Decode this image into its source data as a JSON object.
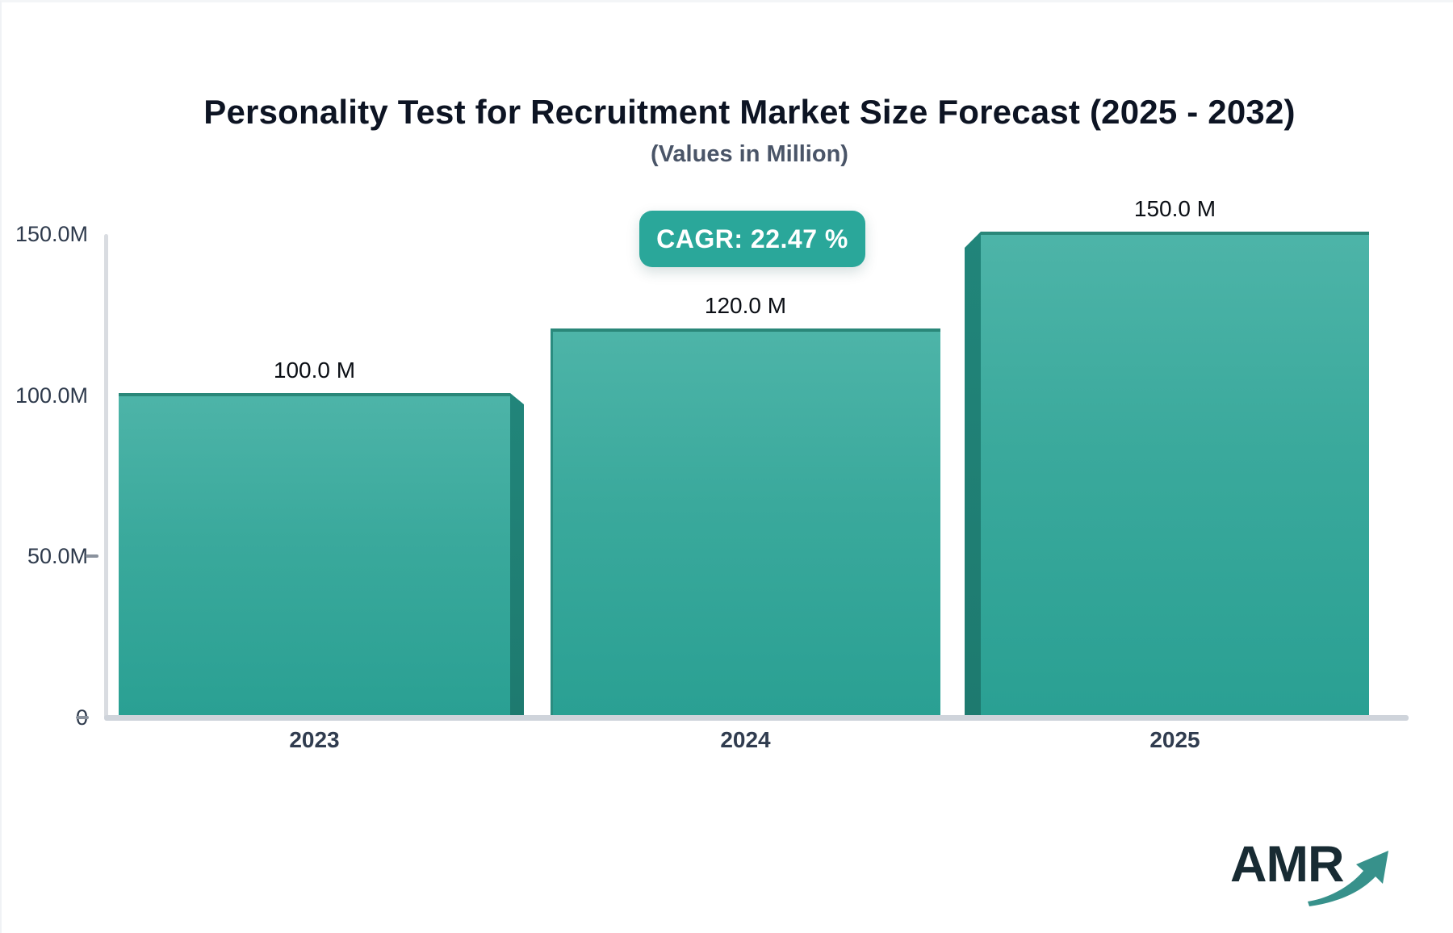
{
  "header": {
    "title": "Personality Test for Recruitment Market Size Forecast (2025 - 2032)",
    "subtitle": "(Values in Million)"
  },
  "badge": {
    "label": "CAGR: 22.47 %"
  },
  "chart_data": {
    "type": "bar",
    "title": "Personality Test for Recruitment Market Size Forecast (2025 - 2032)",
    "subtitle": "(Values in Million)",
    "unit": "Million",
    "categories": [
      "2023",
      "2024",
      "2025"
    ],
    "values": [
      100.0,
      120.0,
      150.0
    ],
    "value_labels": [
      "100.0 M",
      "120.0 M",
      "150.0 M"
    ],
    "cagr_percent": "22.47 %",
    "y_axis": {
      "range": [
        0,
        150
      ],
      "ticks": [
        {
          "label": "150.0M",
          "value": 150,
          "has_dash": false
        },
        {
          "label": "100.0M",
          "value": 100,
          "has_dash": false
        },
        {
          "label": "50.0M",
          "value": 50,
          "has_dash": true
        },
        {
          "label": "0",
          "value": 0,
          "has_dash": true
        }
      ]
    },
    "grid": false,
    "legend": "none",
    "bar_style": {
      "face_top_color": "#4db4a8",
      "face_bottom_color": "#2aa093",
      "edge_color": "#2a8779",
      "side_color": "#1e7a6f"
    }
  },
  "logo": {
    "text": "AMR",
    "arrow_icon": "trend-up-arrow",
    "arrow_color": "#37918b",
    "text_color": "#182b33"
  },
  "colors": {
    "accent_teal": "#2aa79a",
    "axis_gray": "#d9dce1",
    "baseline_gray": "#cfd4db",
    "title_color": "#0d1423",
    "subtitle_color": "#4a5568"
  }
}
